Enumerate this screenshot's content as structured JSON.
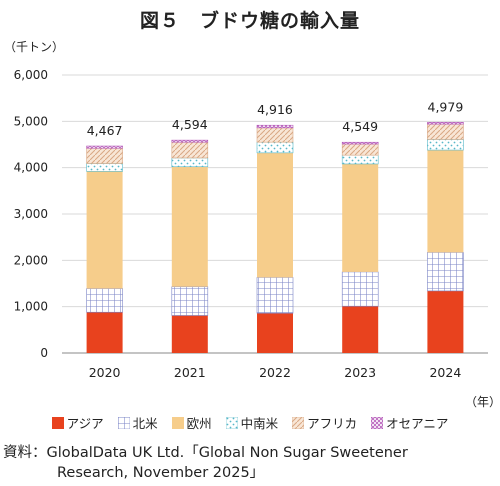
{
  "title": "図５　ブドウ糖の輸入量",
  "unit_label": "（千トン）",
  "x_unit_label": "（年）",
  "source": {
    "line1": "資料：GlobalData UK Ltd.「Global Non Sugar Sweetener",
    "line2": "Research, November 2025」"
  },
  "colors": {
    "アジア": "#e8421e",
    "北米": "#7b84c6",
    "欧州": "#f6cd8b",
    "中南米": "#58b8c8",
    "アフリカ": "#d9a884",
    "オセアニア": "#b55ab9"
  },
  "chart_data": {
    "type": "bar",
    "stacked": true,
    "categories": [
      "2020",
      "2021",
      "2022",
      "2023",
      "2024"
    ],
    "totals": [
      "4,467",
      "4,594",
      "4,916",
      "4,549",
      "4,979"
    ],
    "ylim": [
      0,
      6000
    ],
    "yticks": [
      "0",
      "1,000",
      "2,000",
      "3,000",
      "4,000",
      "5,000",
      "6,000"
    ],
    "grid": true,
    "legend_position": "bottom",
    "series": [
      {
        "name": "アジア",
        "values": [
          880,
          810,
          860,
          1010,
          1340
        ]
      },
      {
        "name": "北米",
        "values": [
          510,
          620,
          770,
          740,
          830
        ]
      },
      {
        "name": "欧州",
        "values": [
          2530,
          2590,
          2690,
          2330,
          2210
        ]
      },
      {
        "name": "中南米",
        "values": [
          170,
          190,
          230,
          190,
          230
        ]
      },
      {
        "name": "アフリカ",
        "values": [
          330,
          340,
          310,
          240,
          330
        ]
      },
      {
        "name": "オセアニア",
        "values": [
          47,
          44,
          56,
          39,
          39
        ]
      }
    ]
  }
}
